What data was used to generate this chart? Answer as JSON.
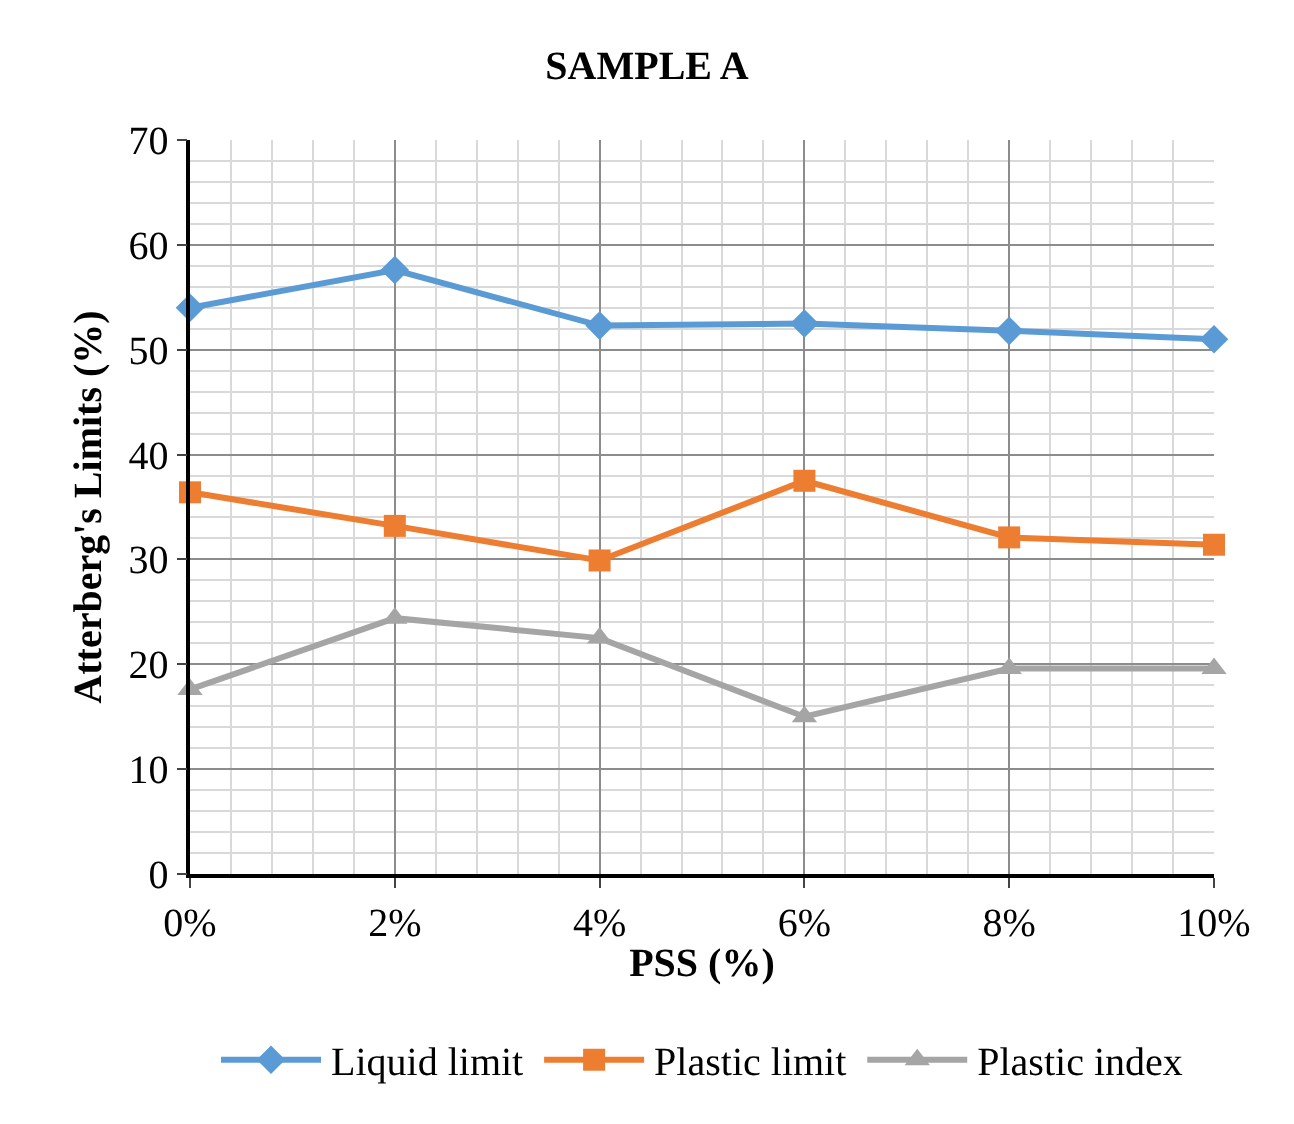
{
  "chart_data": {
    "type": "line",
    "title": "SAMPLE A",
    "xlabel": "PSS (%)",
    "ylabel": "Atterberg's Limits (%)",
    "x": [
      0,
      2,
      4,
      6,
      8,
      10
    ],
    "xlim": [
      0,
      10
    ],
    "xticks": [
      {
        "value": 0,
        "label": "0%"
      },
      {
        "value": 2,
        "label": "2%"
      },
      {
        "value": 4,
        "label": "4%"
      },
      {
        "value": 6,
        "label": "6%"
      },
      {
        "value": 8,
        "label": "8%"
      },
      {
        "value": 10,
        "label": "10%"
      }
    ],
    "ylim": [
      0,
      70
    ],
    "yticks": [
      0,
      10,
      20,
      30,
      40,
      50,
      60,
      70
    ],
    "grid": true,
    "legend": "bottom",
    "series": [
      {
        "name": "Liquid limit",
        "color": "#5b9bd5",
        "marker": "diamond",
        "values": [
          54.0,
          57.6,
          52.3,
          52.5,
          51.8,
          51.0
        ]
      },
      {
        "name": "Plastic limit",
        "color": "#ed7d31",
        "marker": "square",
        "values": [
          36.4,
          33.2,
          29.9,
          37.5,
          32.1,
          31.4
        ]
      },
      {
        "name": "Plastic index",
        "color": "#a5a5a5",
        "marker": "triangle",
        "values": [
          17.6,
          24.4,
          22.5,
          15.0,
          19.6,
          19.6
        ]
      }
    ]
  }
}
